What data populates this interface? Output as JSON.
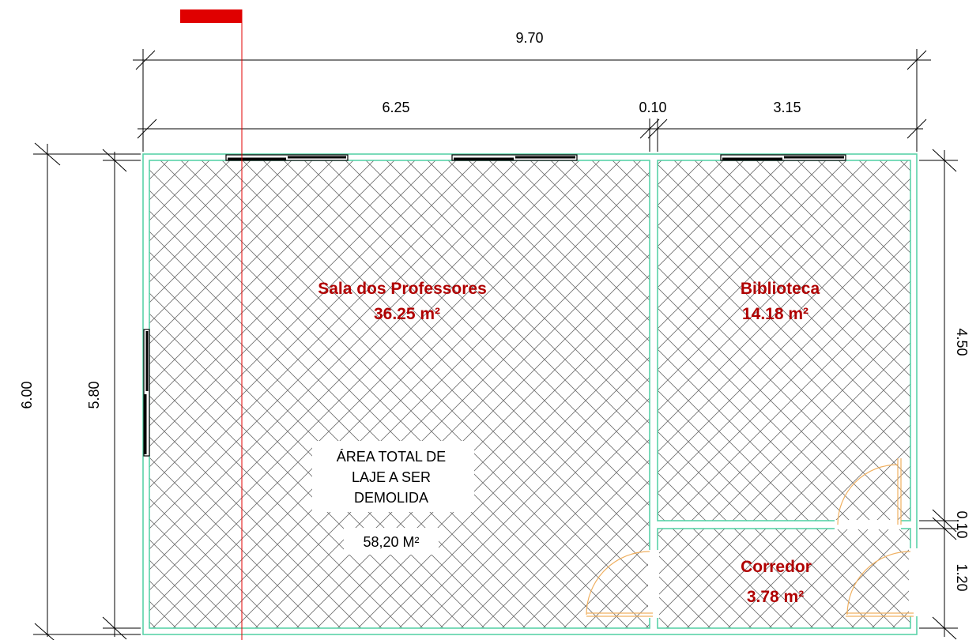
{
  "dimensions": {
    "overall_width": "9.70",
    "segment_left": "6.25",
    "segment_wall": "0.10",
    "segment_right": "3.15",
    "overall_height": "6.00",
    "inner_height": "5.80",
    "right_upper": "4.50",
    "right_wall": "0.10",
    "right_lower": "1.20"
  },
  "rooms": {
    "sala": {
      "name": "Sala dos Professores",
      "area": "36.25 m²"
    },
    "biblioteca": {
      "name": "Biblioteca",
      "area": "14.18 m²"
    },
    "corredor": {
      "name": "Corredor",
      "area": "3.78 m²"
    }
  },
  "note": {
    "line1": "ÁREA TOTAL DE",
    "line2": "LAJE A SER",
    "line3": "DEMOLIDA",
    "area": "58,20 M²"
  },
  "colors": {
    "wall": "#5ad2a8",
    "hatch": "#6e6e6e",
    "room_label": "#b00000",
    "marker": "#e00000",
    "door": "#f0b060"
  }
}
